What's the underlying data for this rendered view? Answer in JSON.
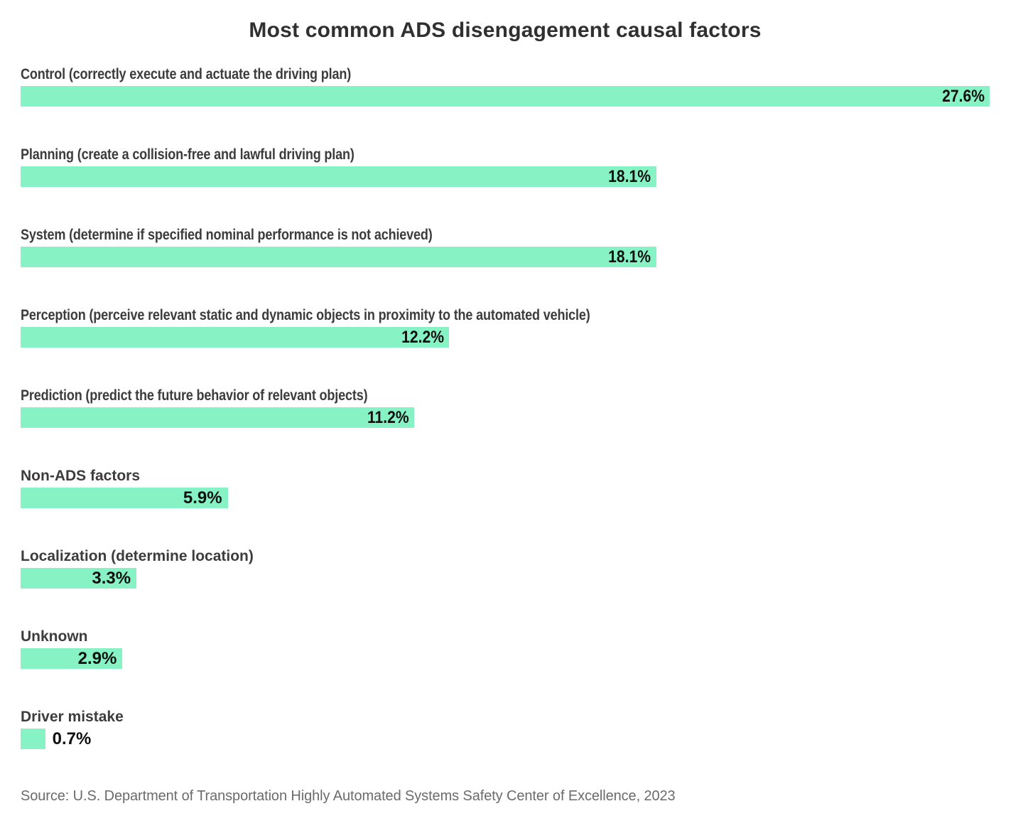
{
  "colors": {
    "bar": "#87f2c3",
    "title": "#303030",
    "label": "#3c3c3c",
    "value": "#101010",
    "source": "#6b6b6b",
    "background": "#ffffff"
  },
  "chart_data": {
    "type": "bar",
    "orientation": "horizontal",
    "title": "Most common ADS disengagement causal factors",
    "source": "Source: U.S. Department of Transportation Highly Automated Systems Safety Center of Excellence, 2023",
    "xlabel": "",
    "ylabel": "",
    "xlim": [
      0,
      27.6
    ],
    "grid": false,
    "legend": false,
    "value_format": "percent",
    "categories": [
      "Control (correctly execute and actuate the driving plan)",
      "Planning (create a collision-free and lawful driving plan)",
      "System (determine if specified nominal performance is not achieved)",
      "Perception (perceive relevant static and dynamic objects in proximity to the automated vehicle)",
      "Prediction (predict the future behavior of relevant objects)",
      "Non-ADS factors",
      "Localization (determine location)",
      "Unknown",
      "Driver mistake"
    ],
    "values": [
      27.6,
      18.1,
      18.1,
      12.2,
      11.2,
      5.9,
      3.3,
      2.9,
      0.7
    ],
    "value_labels": [
      "27.6%",
      "18.1%",
      "18.1%",
      "12.2%",
      "11.2%",
      "5.9%",
      "3.3%",
      "2.9%",
      "0.7%"
    ]
  }
}
